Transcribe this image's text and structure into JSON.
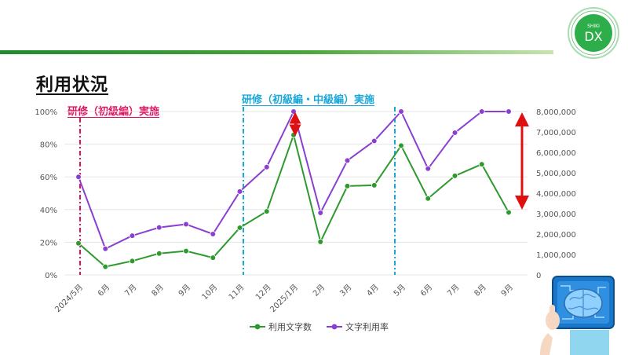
{
  "page": {
    "title": "利用状況",
    "annotation_1": "研修（初級編）実施",
    "annotation_2": "研修（初級編・中級編）実施",
    "logo_top": "SHIKI",
    "logo_main": "DX"
  },
  "colors": {
    "green_series": "#2e9a2e",
    "purple_series": "#8a3fd1",
    "pink_marker": "#e0115f",
    "blue_marker": "#1aa7d9",
    "red_arrow": "#e01010",
    "bar_green": "#2d8f2d"
  },
  "chart_data": {
    "type": "line",
    "categories": [
      "2024/5月",
      "6月",
      "7月",
      "8月",
      "9月",
      "10月",
      "11月",
      "12月",
      "2025/1月",
      "2月",
      "3月",
      "4月",
      "5月",
      "6月",
      "7月",
      "8月",
      "9月"
    ],
    "left_axis": {
      "ticks": [
        "0%",
        "20%",
        "40%",
        "60%",
        "80%",
        "100%"
      ],
      "ylim": [
        0,
        100
      ]
    },
    "right_axis": {
      "ticks": [
        "0",
        "1,000,000",
        "2,000,000",
        "3,000,000",
        "4,000,000",
        "5,000,000",
        "6,000,000",
        "7,000,000",
        "8,000,000"
      ],
      "ylim": [
        0,
        8000000
      ]
    },
    "series": [
      {
        "name": "利用文字数",
        "axis": "right",
        "color": "#2e9a2e",
        "values": [
          1550000,
          400000,
          680000,
          1050000,
          1170000,
          840000,
          2310000,
          3110000,
          6850000,
          1620000,
          4350000,
          4390000,
          6330000,
          3740000,
          4850000,
          5420000,
          3060000
        ]
      },
      {
        "name": "文字利用率",
        "axis": "left",
        "color": "#8a3fd1",
        "values": [
          60,
          16,
          24,
          29,
          31,
          25,
          51,
          66,
          100,
          38,
          70,
          82,
          100,
          65,
          87,
          100,
          100
        ]
      }
    ],
    "markers": [
      {
        "at_index": 0,
        "color": "#e0115f"
      },
      {
        "at_index": 6,
        "color": "#1aa7d9"
      },
      {
        "at_index": 12,
        "color": "#1aa7d9"
      }
    ],
    "legend_position": "bottom",
    "grid": true
  }
}
